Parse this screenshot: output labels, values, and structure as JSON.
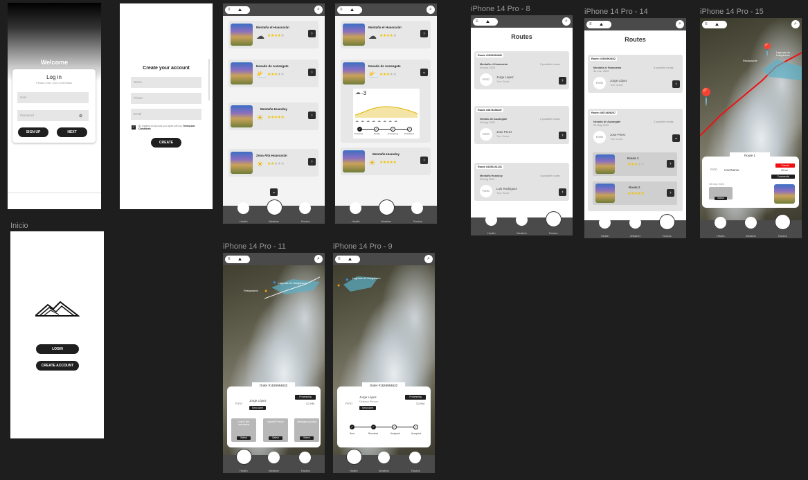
{
  "frames": {
    "login": {
      "title": "Welcome",
      "heading": "Log in",
      "sub": "Please enter your credentials",
      "user": "User",
      "password": "Password",
      "signup": "SIGN UP",
      "next": "NEXT"
    },
    "create": {
      "title": "Create your account",
      "name": "Name",
      "phone": "Phone",
      "email": "Email",
      "terms": "By creating an account you agree with our",
      "terms_link": "Terms and Conditions",
      "create": "CREATE"
    },
    "inicio": {
      "label": "Inicio",
      "login": "LOGIN",
      "create": "CREATE ACCOUNT"
    },
    "list": {
      "items": [
        {
          "title": "Montaña el Huascarán",
          "icon": "cloud",
          "stars": 4
        },
        {
          "title": "Nevado de Auzangate",
          "icon": "suncloud",
          "stars": 3
        },
        {
          "title": "Montaña Huandoy",
          "icon": "sun",
          "stars": 5
        },
        {
          "title": "Zona Alta Huascarán",
          "icon": "sun",
          "stars": 2
        }
      ]
    },
    "nav": {
      "health": "Health",
      "weather": "Weather",
      "routes": "Routes"
    },
    "weather_detail": {
      "temp": "-3",
      "steps": [
        "Prepared",
        "Ready",
        "Emergency",
        "Prohibited"
      ]
    },
    "routes8": {
      "label": "iPhone 14 Pro - 8",
      "title": "Routes",
      "items": [
        {
          "id": "Route #1526964632",
          "place": "Montaña el Huascarán",
          "date": "30 mar. 2023",
          "count": "5 possible routes",
          "guide": "Jorge López",
          "role": "Tour Guide"
        },
        {
          "id": "Route #3674458237",
          "place": "Nevado de Auzangate",
          "date": "09 May 2023",
          "count": "2 possible routes",
          "guide": "Jose Perez",
          "role": "Tour Guide"
        },
        {
          "id": "Route #4156231231",
          "place": "Montaña Huandoy",
          "date": "05 Aug 2023",
          "count": "4 possible routes",
          "guide": "Luis Rodriguez",
          "role": "Tour Guide"
        }
      ]
    },
    "routes14": {
      "label": "iPhone 14 Pro - 14",
      "title": "Routes",
      "route1": "Route 1",
      "route2": "Route 2"
    },
    "map15": {
      "label": "iPhone 14 Pro - 15",
      "route": "Route 1",
      "user": "UserName",
      "cancel": "Cancel",
      "km": "30 km",
      "comments": "Comments",
      "date": "09 May 2023",
      "select": "Select",
      "lagoon": "Lagunas de Llanganuco",
      "restaurant": "Restaurante"
    },
    "map11": {
      "label": "iPhone 14 Pro - 11",
      "order": "Order #1526964632",
      "guide": "Jorge López",
      "status": "Processing",
      "alert": "Send Alert",
      "km": "3,2 KM",
      "options": [
        "Lost in the mountains",
        "Injured Person",
        "Damaged product"
      ],
      "select": "Select",
      "foto": "FOTO"
    },
    "map9": {
      "label": "iPhone 14 Pro - 9",
      "order": "Order #1526964632",
      "guide": "Jorge López",
      "role": "Delivery Person",
      "status": "Processing",
      "alert": "Send Alert",
      "km": "3,2 KM",
      "steps": [
        "Sent",
        "Received",
        "Analyzed",
        "Accepted"
      ],
      "foto": "FOTO"
    }
  }
}
